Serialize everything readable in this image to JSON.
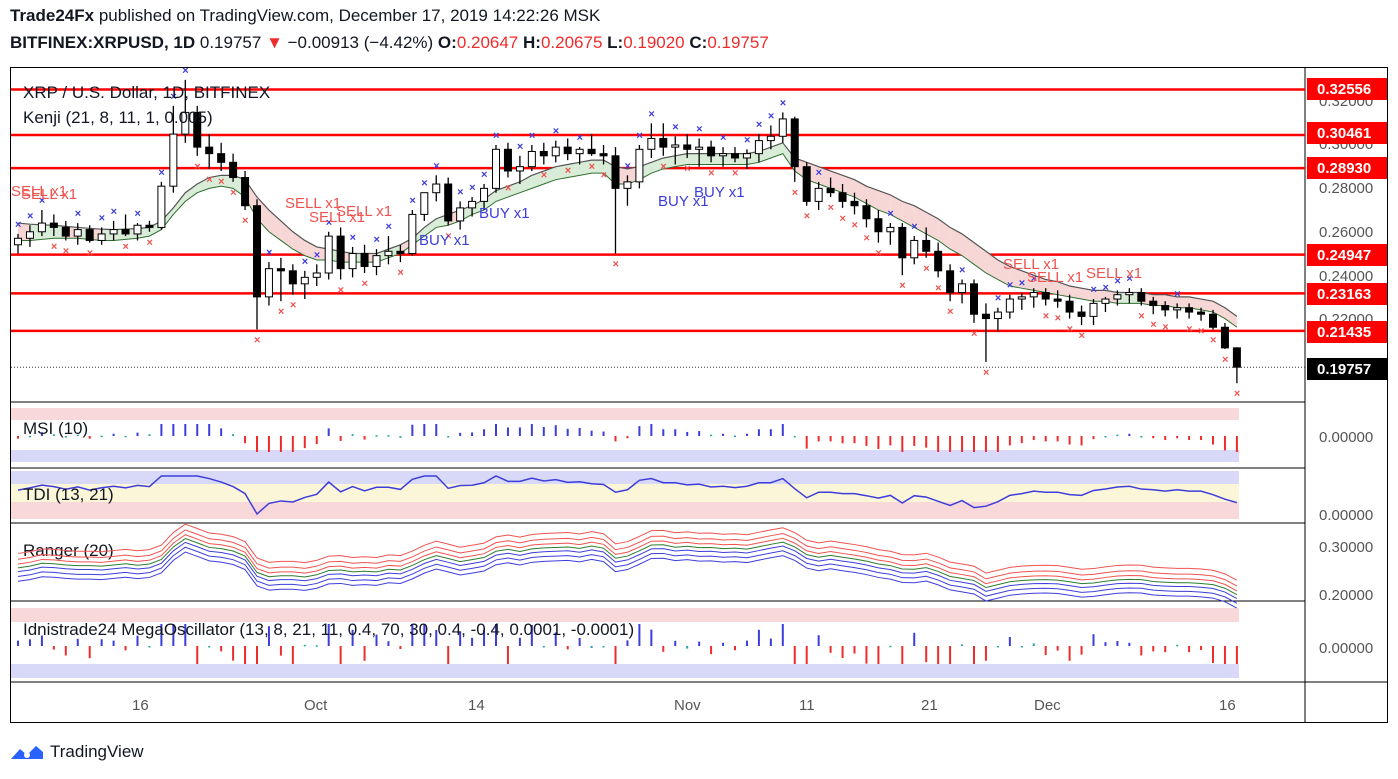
{
  "header": {
    "publisher": "Trade24Fx",
    "published_text": "published on TradingView.com, December 17, 2019 14:22:26 MSK",
    "symbol": "BITFINEX:XRPUSD, 1D",
    "last": "0.19757",
    "change": "−0.00913 (−4.42%)",
    "o_label": "O:",
    "o": "0.20647",
    "h_label": "H:",
    "h": "0.20675",
    "l_label": "L:",
    "l": "0.19020",
    "c_label": "C:",
    "c": "0.19757"
  },
  "chart_legend": {
    "title": "XRP / U.S. Dollar, 1D, BITFINEX",
    "indicator": "Kenji (21, 8, 11, 1, 0.005)"
  },
  "panes": {
    "msi": "MSI (10)",
    "tdi": "TDI (13, 21)",
    "ranger": "Ranger (20)",
    "mega": "Idnistrade24 MegaOscillator (13, 8, 21, 11, 0.4, 70, 30, 0.4, -0.4, 0.0001, -0.0001)"
  },
  "price_axis": {
    "ticks": [
      "0.32000",
      "0.30000",
      "0.28000",
      "0.26000",
      "0.24000",
      "0.22000"
    ],
    "levels": [
      "0.32556",
      "0.30461",
      "0.28930",
      "0.24947",
      "0.23163",
      "0.21435"
    ],
    "last_tag": "0.19757"
  },
  "pane_axis": {
    "msi_tick": "0.00000",
    "tdi_tick": "0.00000",
    "ranger_ticks": [
      "0.30000",
      "0.20000"
    ],
    "mega_tick": "0.00000"
  },
  "time_axis": [
    "16",
    "Oct",
    "14",
    "Nov",
    "11",
    "21",
    "Dec",
    "16"
  ],
  "signals": {
    "sell": [
      "SELL x1",
      "SELL x1",
      "SELL x1",
      "SELL x1",
      "SELL x1",
      "SELL x1",
      "SELL x1",
      "SELL x1",
      "SELL x1"
    ],
    "buy": [
      "BUY x1",
      "BUY x1",
      "BUY x1",
      "BUY x1",
      "BUY x1"
    ]
  },
  "colors": {
    "level_line": "#ff0000",
    "sell_text": "#ef5350",
    "buy_text": "#3d3ddb",
    "up_hist": "#3d3ddb",
    "down_hist": "#ef2c2c",
    "neutral_hist": "#26a69a",
    "cloud_bear": "#f7d6d6",
    "cloud_bull": "#d8ecd8"
  },
  "footer": {
    "brand": "TradingView"
  },
  "chart_data": {
    "type": "candlestick",
    "title": "XRP / U.S. Dollar, 1D, BITFINEX",
    "ylim": [
      0.185,
      0.335
    ],
    "horizontal_levels": [
      0.32556,
      0.30461,
      0.2893,
      0.24947,
      0.23163,
      0.21435
    ],
    "last_price": 0.19757,
    "candles": [
      [
        0.254,
        0.259,
        0.25,
        0.257
      ],
      [
        0.257,
        0.263,
        0.253,
        0.26
      ],
      [
        0.26,
        0.27,
        0.258,
        0.264
      ],
      [
        0.264,
        0.268,
        0.258,
        0.262
      ],
      [
        0.262,
        0.265,
        0.256,
        0.258
      ],
      [
        0.258,
        0.264,
        0.254,
        0.261
      ],
      [
        0.261,
        0.263,
        0.255,
        0.256
      ],
      [
        0.256,
        0.262,
        0.254,
        0.259
      ],
      [
        0.259,
        0.265,
        0.256,
        0.261
      ],
      [
        0.261,
        0.268,
        0.258,
        0.259
      ],
      [
        0.259,
        0.264,
        0.256,
        0.263
      ],
      [
        0.263,
        0.265,
        0.26,
        0.262
      ],
      [
        0.262,
        0.283,
        0.261,
        0.281
      ],
      [
        0.281,
        0.318,
        0.278,
        0.305
      ],
      [
        0.305,
        0.33,
        0.301,
        0.315
      ],
      [
        0.315,
        0.318,
        0.295,
        0.299
      ],
      [
        0.299,
        0.305,
        0.289,
        0.296
      ],
      [
        0.296,
        0.301,
        0.288,
        0.292
      ],
      [
        0.292,
        0.296,
        0.283,
        0.285
      ],
      [
        0.285,
        0.288,
        0.27,
        0.272
      ],
      [
        0.272,
        0.275,
        0.215,
        0.23
      ],
      [
        0.23,
        0.246,
        0.226,
        0.243
      ],
      [
        0.243,
        0.248,
        0.228,
        0.242
      ],
      [
        0.242,
        0.245,
        0.231,
        0.236
      ],
      [
        0.236,
        0.242,
        0.229,
        0.239
      ],
      [
        0.239,
        0.245,
        0.235,
        0.241
      ],
      [
        0.241,
        0.26,
        0.238,
        0.258
      ],
      [
        0.258,
        0.262,
        0.238,
        0.243
      ],
      [
        0.243,
        0.253,
        0.239,
        0.25
      ],
      [
        0.25,
        0.254,
        0.241,
        0.244
      ],
      [
        0.244,
        0.252,
        0.24,
        0.249
      ],
      [
        0.249,
        0.258,
        0.245,
        0.251
      ],
      [
        0.251,
        0.254,
        0.246,
        0.25
      ],
      [
        0.25,
        0.27,
        0.249,
        0.268
      ],
      [
        0.268,
        0.278,
        0.265,
        0.278
      ],
      [
        0.278,
        0.286,
        0.274,
        0.282
      ],
      [
        0.282,
        0.285,
        0.263,
        0.265
      ],
      [
        0.265,
        0.274,
        0.261,
        0.271
      ],
      [
        0.271,
        0.276,
        0.267,
        0.274
      ],
      [
        0.274,
        0.282,
        0.27,
        0.28
      ],
      [
        0.28,
        0.3,
        0.278,
        0.298
      ],
      [
        0.298,
        0.301,
        0.285,
        0.288
      ],
      [
        0.288,
        0.295,
        0.282,
        0.29
      ],
      [
        0.29,
        0.3,
        0.288,
        0.297
      ],
      [
        0.297,
        0.301,
        0.291,
        0.295
      ],
      [
        0.295,
        0.302,
        0.292,
        0.299
      ],
      [
        0.299,
        0.303,
        0.293,
        0.296
      ],
      [
        0.296,
        0.299,
        0.291,
        0.298
      ],
      [
        0.298,
        0.305,
        0.295,
        0.296
      ],
      [
        0.296,
        0.3,
        0.291,
        0.295
      ],
      [
        0.295,
        0.299,
        0.25,
        0.28
      ],
      [
        0.28,
        0.286,
        0.272,
        0.283
      ],
      [
        0.283,
        0.3,
        0.28,
        0.298
      ],
      [
        0.298,
        0.31,
        0.294,
        0.303
      ],
      [
        0.303,
        0.31,
        0.295,
        0.299
      ],
      [
        0.299,
        0.304,
        0.291,
        0.3
      ],
      [
        0.3,
        0.305,
        0.294,
        0.298
      ],
      [
        0.298,
        0.303,
        0.29,
        0.299
      ],
      [
        0.299,
        0.302,
        0.292,
        0.295
      ],
      [
        0.295,
        0.299,
        0.29,
        0.296
      ],
      [
        0.296,
        0.299,
        0.292,
        0.294
      ],
      [
        0.294,
        0.298,
        0.289,
        0.296
      ],
      [
        0.296,
        0.305,
        0.292,
        0.302
      ],
      [
        0.302,
        0.309,
        0.298,
        0.304
      ],
      [
        0.304,
        0.315,
        0.301,
        0.312
      ],
      [
        0.312,
        0.313,
        0.283,
        0.29
      ],
      [
        0.29,
        0.292,
        0.272,
        0.274
      ],
      [
        0.274,
        0.283,
        0.27,
        0.28
      ],
      [
        0.28,
        0.285,
        0.276,
        0.278
      ],
      [
        0.278,
        0.282,
        0.271,
        0.274
      ],
      [
        0.274,
        0.278,
        0.268,
        0.272
      ],
      [
        0.272,
        0.275,
        0.262,
        0.266
      ],
      [
        0.266,
        0.27,
        0.255,
        0.26
      ],
      [
        0.26,
        0.264,
        0.254,
        0.262
      ],
      [
        0.262,
        0.264,
        0.24,
        0.248
      ],
      [
        0.248,
        0.258,
        0.245,
        0.256
      ],
      [
        0.256,
        0.262,
        0.248,
        0.251
      ],
      [
        0.251,
        0.255,
        0.239,
        0.242
      ],
      [
        0.242,
        0.245,
        0.228,
        0.232
      ],
      [
        0.232,
        0.238,
        0.227,
        0.236
      ],
      [
        0.236,
        0.238,
        0.218,
        0.222
      ],
      [
        0.222,
        0.227,
        0.2,
        0.22
      ],
      [
        0.22,
        0.225,
        0.214,
        0.223
      ],
      [
        0.223,
        0.231,
        0.22,
        0.229
      ],
      [
        0.229,
        0.232,
        0.224,
        0.23
      ],
      [
        0.23,
        0.234,
        0.225,
        0.232
      ],
      [
        0.232,
        0.234,
        0.226,
        0.229
      ],
      [
        0.229,
        0.233,
        0.225,
        0.228
      ],
      [
        0.228,
        0.231,
        0.22,
        0.223
      ],
      [
        0.223,
        0.226,
        0.217,
        0.221
      ],
      [
        0.221,
        0.229,
        0.217,
        0.227
      ],
      [
        0.227,
        0.23,
        0.223,
        0.229
      ],
      [
        0.229,
        0.233,
        0.226,
        0.231
      ],
      [
        0.231,
        0.234,
        0.227,
        0.232
      ],
      [
        0.232,
        0.234,
        0.226,
        0.228
      ],
      [
        0.228,
        0.23,
        0.222,
        0.226
      ],
      [
        0.226,
        0.228,
        0.221,
        0.224
      ],
      [
        0.224,
        0.227,
        0.22,
        0.225
      ],
      [
        0.225,
        0.227,
        0.22,
        0.223
      ],
      [
        0.223,
        0.225,
        0.219,
        0.222
      ],
      [
        0.222,
        0.224,
        0.215,
        0.216
      ],
      [
        0.216,
        0.218,
        0.206,
        0.2065
      ],
      [
        0.2065,
        0.2068,
        0.1902,
        0.1976
      ]
    ],
    "cloud_upper": [
      0.264,
      0.2635,
      0.2632,
      0.263,
      0.2625,
      0.262,
      0.2616,
      0.2612,
      0.261,
      0.2612,
      0.2615,
      0.262,
      0.265,
      0.271,
      0.278,
      0.282,
      0.285,
      0.286,
      0.286,
      0.284,
      0.276,
      0.27,
      0.265,
      0.26,
      0.256,
      0.253,
      0.252,
      0.251,
      0.25,
      0.25,
      0.25,
      0.252,
      0.254,
      0.257,
      0.262,
      0.266,
      0.268,
      0.27,
      0.272,
      0.275,
      0.279,
      0.281,
      0.283,
      0.286,
      0.288,
      0.29,
      0.291,
      0.292,
      0.293,
      0.293,
      0.29,
      0.289,
      0.29,
      0.292,
      0.294,
      0.295,
      0.296,
      0.296,
      0.296,
      0.296,
      0.296,
      0.296,
      0.297,
      0.299,
      0.301,
      0.294,
      0.292,
      0.29,
      0.288,
      0.286,
      0.284,
      0.281,
      0.279,
      0.277,
      0.274,
      0.272,
      0.269,
      0.266,
      0.262,
      0.259,
      0.255,
      0.251,
      0.247,
      0.244,
      0.242,
      0.24,
      0.238,
      0.237,
      0.235,
      0.234,
      0.233,
      0.233,
      0.232,
      0.232,
      0.232,
      0.231,
      0.231,
      0.23,
      0.23,
      0.229,
      0.228,
      0.225,
      0.221
    ],
    "cloud_lower": [
      0.256,
      0.256,
      0.2565,
      0.257,
      0.257,
      0.257,
      0.2565,
      0.256,
      0.256,
      0.2565,
      0.257,
      0.258,
      0.261,
      0.268,
      0.274,
      0.278,
      0.28,
      0.281,
      0.28,
      0.276,
      0.266,
      0.26,
      0.256,
      0.252,
      0.249,
      0.247,
      0.247,
      0.246,
      0.246,
      0.246,
      0.246,
      0.248,
      0.25,
      0.254,
      0.258,
      0.262,
      0.263,
      0.265,
      0.268,
      0.27,
      0.274,
      0.276,
      0.278,
      0.28,
      0.282,
      0.284,
      0.285,
      0.286,
      0.287,
      0.287,
      0.282,
      0.282,
      0.284,
      0.287,
      0.289,
      0.29,
      0.291,
      0.291,
      0.291,
      0.291,
      0.291,
      0.291,
      0.292,
      0.294,
      0.296,
      0.288,
      0.284,
      0.282,
      0.28,
      0.278,
      0.276,
      0.273,
      0.27,
      0.268,
      0.265,
      0.262,
      0.259,
      0.256,
      0.252,
      0.249,
      0.245,
      0.241,
      0.238,
      0.235,
      0.234,
      0.233,
      0.232,
      0.231,
      0.23,
      0.229,
      0.228,
      0.228,
      0.227,
      0.227,
      0.227,
      0.226,
      0.226,
      0.225,
      0.225,
      0.224,
      0.223,
      0.22,
      0.216
    ]
  }
}
